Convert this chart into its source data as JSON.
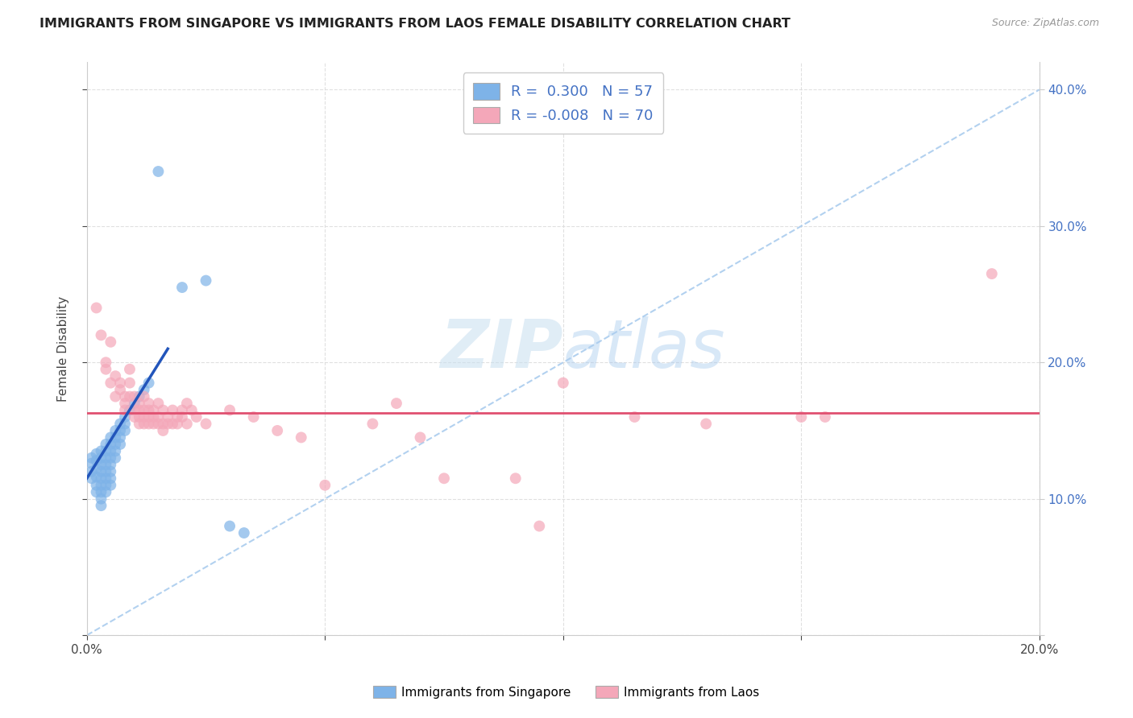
{
  "title": "IMMIGRANTS FROM SINGAPORE VS IMMIGRANTS FROM LAOS FEMALE DISABILITY CORRELATION CHART",
  "source": "Source: ZipAtlas.com",
  "ylabel": "Female Disability",
  "xlim": [
    0.0,
    0.2
  ],
  "ylim": [
    0.0,
    0.42
  ],
  "singapore_color": "#7EB3E8",
  "laos_color": "#F4A7B9",
  "singapore_R": 0.3,
  "singapore_N": 57,
  "laos_R": -0.008,
  "laos_N": 70,
  "blue_line_color": "#2255BB",
  "pink_line_color": "#E05070",
  "diagonal_line_color": "#AACCEE",
  "background_color": "#FFFFFF",
  "grid_color": "#DDDDDD",
  "singapore_points": [
    [
      0.001,
      0.13
    ],
    [
      0.001,
      0.126
    ],
    [
      0.001,
      0.12
    ],
    [
      0.001,
      0.115
    ],
    [
      0.002,
      0.133
    ],
    [
      0.002,
      0.128
    ],
    [
      0.002,
      0.122
    ],
    [
      0.002,
      0.116
    ],
    [
      0.002,
      0.11
    ],
    [
      0.002,
      0.105
    ],
    [
      0.003,
      0.135
    ],
    [
      0.003,
      0.13
    ],
    [
      0.003,
      0.125
    ],
    [
      0.003,
      0.12
    ],
    [
      0.003,
      0.115
    ],
    [
      0.003,
      0.11
    ],
    [
      0.003,
      0.105
    ],
    [
      0.003,
      0.1
    ],
    [
      0.003,
      0.095
    ],
    [
      0.004,
      0.14
    ],
    [
      0.004,
      0.135
    ],
    [
      0.004,
      0.13
    ],
    [
      0.004,
      0.125
    ],
    [
      0.004,
      0.12
    ],
    [
      0.004,
      0.115
    ],
    [
      0.004,
      0.11
    ],
    [
      0.004,
      0.105
    ],
    [
      0.005,
      0.145
    ],
    [
      0.005,
      0.14
    ],
    [
      0.005,
      0.135
    ],
    [
      0.005,
      0.13
    ],
    [
      0.005,
      0.125
    ],
    [
      0.005,
      0.12
    ],
    [
      0.005,
      0.115
    ],
    [
      0.005,
      0.11
    ],
    [
      0.006,
      0.15
    ],
    [
      0.006,
      0.145
    ],
    [
      0.006,
      0.14
    ],
    [
      0.006,
      0.135
    ],
    [
      0.006,
      0.13
    ],
    [
      0.007,
      0.155
    ],
    [
      0.007,
      0.15
    ],
    [
      0.007,
      0.145
    ],
    [
      0.007,
      0.14
    ],
    [
      0.008,
      0.16
    ],
    [
      0.008,
      0.155
    ],
    [
      0.008,
      0.15
    ],
    [
      0.009,
      0.165
    ],
    [
      0.01,
      0.17
    ],
    [
      0.011,
      0.175
    ],
    [
      0.012,
      0.18
    ],
    [
      0.013,
      0.185
    ],
    [
      0.015,
      0.34
    ],
    [
      0.02,
      0.255
    ],
    [
      0.025,
      0.26
    ],
    [
      0.03,
      0.08
    ],
    [
      0.033,
      0.075
    ]
  ],
  "laos_points": [
    [
      0.002,
      0.24
    ],
    [
      0.003,
      0.22
    ],
    [
      0.004,
      0.2
    ],
    [
      0.004,
      0.195
    ],
    [
      0.005,
      0.215
    ],
    [
      0.005,
      0.185
    ],
    [
      0.006,
      0.19
    ],
    [
      0.006,
      0.175
    ],
    [
      0.007,
      0.185
    ],
    [
      0.007,
      0.18
    ],
    [
      0.008,
      0.175
    ],
    [
      0.008,
      0.17
    ],
    [
      0.008,
      0.165
    ],
    [
      0.009,
      0.195
    ],
    [
      0.009,
      0.185
    ],
    [
      0.009,
      0.175
    ],
    [
      0.01,
      0.175
    ],
    [
      0.01,
      0.165
    ],
    [
      0.01,
      0.16
    ],
    [
      0.011,
      0.17
    ],
    [
      0.011,
      0.165
    ],
    [
      0.011,
      0.16
    ],
    [
      0.011,
      0.155
    ],
    [
      0.012,
      0.175
    ],
    [
      0.012,
      0.165
    ],
    [
      0.012,
      0.16
    ],
    [
      0.012,
      0.155
    ],
    [
      0.013,
      0.17
    ],
    [
      0.013,
      0.165
    ],
    [
      0.013,
      0.16
    ],
    [
      0.013,
      0.155
    ],
    [
      0.014,
      0.165
    ],
    [
      0.014,
      0.16
    ],
    [
      0.014,
      0.155
    ],
    [
      0.015,
      0.17
    ],
    [
      0.015,
      0.16
    ],
    [
      0.015,
      0.155
    ],
    [
      0.016,
      0.165
    ],
    [
      0.016,
      0.155
    ],
    [
      0.016,
      0.15
    ],
    [
      0.017,
      0.16
    ],
    [
      0.017,
      0.155
    ],
    [
      0.018,
      0.165
    ],
    [
      0.018,
      0.155
    ],
    [
      0.019,
      0.16
    ],
    [
      0.019,
      0.155
    ],
    [
      0.02,
      0.165
    ],
    [
      0.02,
      0.16
    ],
    [
      0.021,
      0.17
    ],
    [
      0.021,
      0.155
    ],
    [
      0.022,
      0.165
    ],
    [
      0.023,
      0.16
    ],
    [
      0.025,
      0.155
    ],
    [
      0.03,
      0.165
    ],
    [
      0.035,
      0.16
    ],
    [
      0.04,
      0.15
    ],
    [
      0.045,
      0.145
    ],
    [
      0.05,
      0.11
    ],
    [
      0.06,
      0.155
    ],
    [
      0.065,
      0.17
    ],
    [
      0.07,
      0.145
    ],
    [
      0.075,
      0.115
    ],
    [
      0.09,
      0.115
    ],
    [
      0.095,
      0.08
    ],
    [
      0.1,
      0.185
    ],
    [
      0.115,
      0.16
    ],
    [
      0.13,
      0.155
    ],
    [
      0.15,
      0.16
    ],
    [
      0.155,
      0.16
    ],
    [
      0.19,
      0.265
    ]
  ]
}
